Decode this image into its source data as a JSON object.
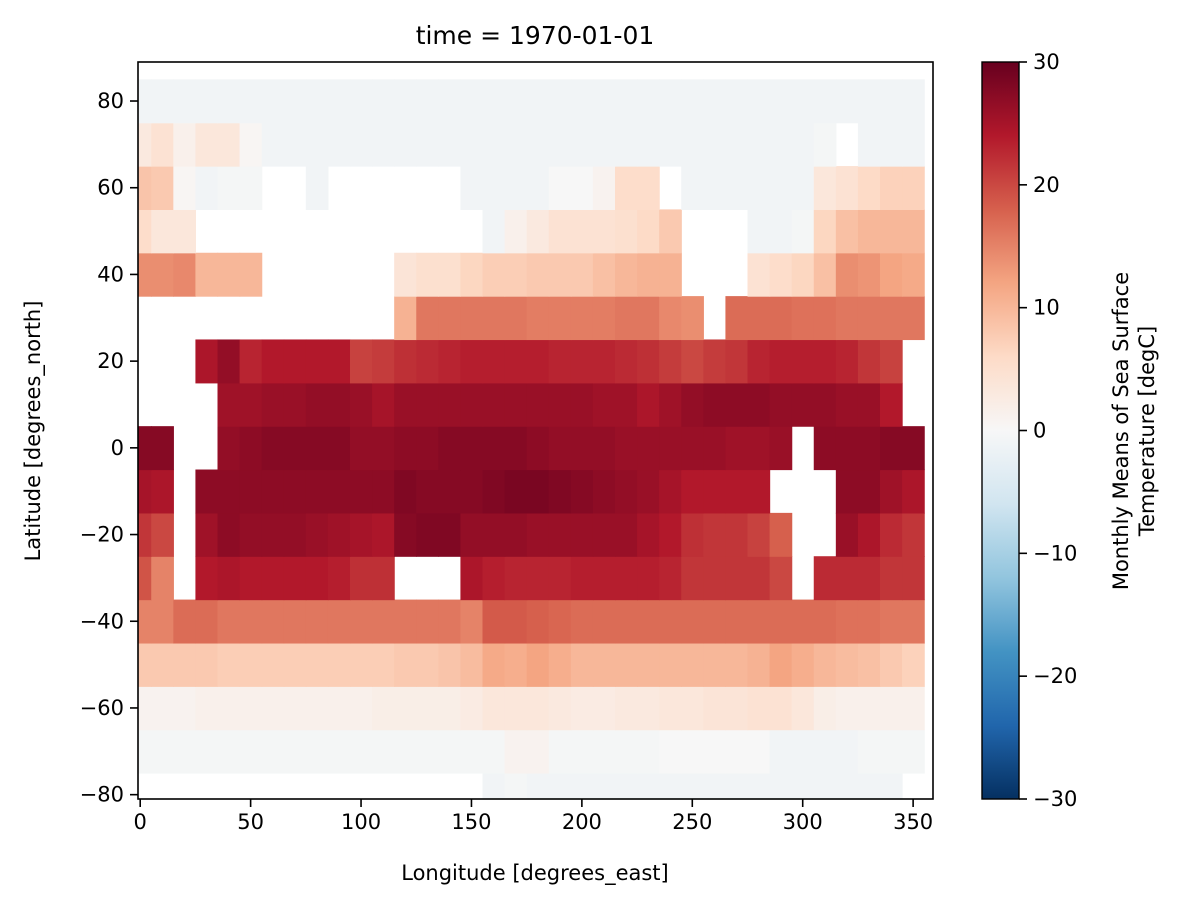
{
  "chart_data": {
    "type": "heatmap",
    "title": "time = 1970-01-01",
    "xlabel": "Longitude [degrees_east]",
    "ylabel": "Latitude [degrees_north]",
    "xlim": [
      -1,
      359
    ],
    "ylim": [
      -81,
      89
    ],
    "x_ticks": [
      0,
      50,
      100,
      150,
      200,
      250,
      300,
      350
    ],
    "x_tick_labels": [
      "0",
      "50",
      "100",
      "150",
      "200",
      "250",
      "300",
      "350"
    ],
    "y_ticks": [
      -80,
      -60,
      -40,
      -20,
      0,
      20,
      40,
      60,
      80
    ],
    "y_tick_labels": [
      "−80",
      "−60",
      "−40",
      "−20",
      "0",
      "20",
      "40",
      "60",
      "80"
    ],
    "grid": false,
    "colormap": "RdBu_r",
    "colorbar": {
      "label_line1": "Monthly Means of Sea Surface",
      "label_line2": "Temperature [degC]",
      "vmin": -30,
      "vmax": 30,
      "ticks": [
        -30,
        -20,
        -10,
        0,
        10,
        20,
        30
      ],
      "tick_labels": [
        "−30",
        "−20",
        "−10",
        "0",
        "10",
        "20",
        "30"
      ],
      "placement": "right"
    },
    "x_centers": [
      0,
      10,
      20,
      30,
      40,
      50,
      60,
      70,
      80,
      90,
      100,
      110,
      120,
      130,
      140,
      150,
      160,
      170,
      180,
      190,
      200,
      210,
      220,
      230,
      240,
      250,
      260,
      270,
      280,
      290,
      300,
      310,
      320,
      330,
      340,
      350
    ],
    "y_centers": [
      -80,
      -70,
      -60,
      -50,
      -40,
      -30,
      -20,
      -10,
      0,
      10,
      20,
      30,
      40,
      50,
      60,
      70,
      80
    ],
    "cell_width": 10,
    "cell_height": 10,
    "rows": [
      [
        null,
        null,
        null,
        null,
        null,
        null,
        null,
        null,
        null,
        null,
        null,
        null,
        null,
        null,
        null,
        null,
        -1,
        -0.5,
        -1,
        -1,
        -1,
        -1,
        -1,
        -1,
        -1,
        -1,
        -1,
        -1,
        -1,
        -1,
        -1,
        -1,
        -1,
        -1,
        -1,
        null
      ],
      [
        -0.5,
        -0.5,
        -0.5,
        -0.5,
        -0.5,
        -0.5,
        -0.5,
        -0.5,
        -0.5,
        -0.5,
        -0.5,
        -0.5,
        -0.5,
        -0.5,
        -0.5,
        -0.5,
        -0.5,
        1,
        1,
        -0.5,
        -0.5,
        -0.5,
        -0.5,
        -0.5,
        0,
        0,
        0,
        0,
        0,
        -1,
        -1,
        -1,
        -1,
        -0.5,
        -0.5,
        -0.5
      ],
      [
        1,
        1,
        1,
        1.5,
        1.5,
        1.5,
        1.5,
        1.5,
        1.5,
        1.5,
        1.5,
        2,
        2,
        2,
        2,
        2.5,
        3.5,
        3.5,
        3.5,
        3,
        2.5,
        2.5,
        3,
        3,
        3.5,
        3.5,
        4,
        4,
        4.5,
        4.5,
        3.5,
        2,
        1.5,
        1.5,
        1.5,
        1.5
      ],
      [
        8,
        8,
        8,
        8,
        7.5,
        7.5,
        7.5,
        7.5,
        7.5,
        7.5,
        7.5,
        7.5,
        8,
        8,
        8.5,
        9.5,
        11.5,
        11,
        12,
        11,
        10,
        10,
        10,
        10,
        10,
        10,
        10,
        10,
        10.5,
        12,
        11,
        10,
        9.5,
        9,
        8,
        7
      ],
      [
        15,
        15,
        17,
        17,
        16,
        16,
        16,
        16,
        16,
        16,
        16,
        16,
        16,
        16,
        16,
        15,
        18.5,
        18.5,
        18,
        17.5,
        17,
        17,
        17,
        17,
        17,
        17,
        17,
        17,
        17,
        17,
        17,
        17,
        16.5,
        16.5,
        16,
        16
      ],
      [
        19,
        15,
        null,
        24,
        24.5,
        24,
        24,
        24,
        24,
        23.5,
        22,
        22,
        null,
        null,
        null,
        24.5,
        23.5,
        23,
        23,
        23,
        23.5,
        23.5,
        23.5,
        23.5,
        23,
        21.5,
        21.5,
        21.5,
        21.5,
        20,
        null,
        22.5,
        22.5,
        22.5,
        21.5,
        21.5
      ],
      [
        21.5,
        20,
        null,
        25.5,
        27,
        26.5,
        26.5,
        26.5,
        26,
        25.5,
        25,
        24.5,
        27.5,
        28,
        28,
        26.5,
        26.5,
        26.5,
        26,
        26,
        26,
        26,
        26,
        25,
        24,
        22,
        21.5,
        21.5,
        20.5,
        18,
        null,
        null,
        26,
        24.5,
        22.5,
        21.5
      ],
      [
        25,
        24.5,
        null,
        27,
        27,
        27,
        27,
        27,
        27,
        27,
        27,
        27,
        28,
        27.5,
        27.5,
        27.5,
        28,
        28.5,
        28.5,
        28,
        27.5,
        27,
        26.5,
        26,
        25,
        24,
        24,
        24,
        24,
        null,
        null,
        null,
        27,
        27,
        25.5,
        24.5
      ],
      [
        27.5,
        27.5,
        null,
        null,
        26.5,
        27,
        27.5,
        27.5,
        27.5,
        27.5,
        26.5,
        26.5,
        27,
        27,
        27.5,
        27.5,
        27.5,
        27.5,
        27,
        26.5,
        26.5,
        26.5,
        26,
        26,
        26,
        26,
        26,
        25.5,
        25.5,
        26,
        null,
        27,
        27,
        27,
        27.5,
        27.5
      ],
      [
        null,
        null,
        null,
        null,
        25.5,
        25.5,
        26,
        26,
        26.5,
        26.5,
        26,
        25,
        26,
        26,
        26,
        26,
        26,
        26,
        26,
        26,
        26,
        25.5,
        25.5,
        24.5,
        25.5,
        26.5,
        27,
        27,
        27,
        26.5,
        26.5,
        26.5,
        26,
        26,
        24,
        null
      ],
      [
        null,
        null,
        null,
        24.5,
        26.5,
        23,
        24,
        24,
        24,
        24,
        20.5,
        21,
        22,
        22.5,
        23,
        23.5,
        23.5,
        23.5,
        23.5,
        23,
        23,
        23,
        22.5,
        22,
        21,
        20,
        21,
        21.5,
        23,
        23.5,
        23.5,
        23.5,
        23,
        21.5,
        20.5,
        null
      ],
      [
        null,
        null,
        null,
        null,
        null,
        null,
        null,
        null,
        null,
        null,
        null,
        null,
        10.5,
        16,
        16,
        16,
        16,
        16,
        15.5,
        15.5,
        15.5,
        15.5,
        16,
        16,
        14.5,
        14,
        null,
        17,
        17,
        17,
        16.5,
        16.5,
        16,
        16,
        16,
        16
      ],
      [
        14,
        14,
        14.5,
        10,
        10,
        10,
        null,
        null,
        null,
        null,
        null,
        null,
        4,
        5,
        5,
        6.5,
        7.5,
        7.5,
        8,
        8,
        8,
        9,
        10,
        10.5,
        10.5,
        null,
        null,
        null,
        4.5,
        5.5,
        6.5,
        9,
        14,
        13.5,
        12,
        11.5
      ],
      [
        5.5,
        3.5,
        3.5,
        null,
        null,
        null,
        null,
        null,
        null,
        null,
        null,
        null,
        null,
        null,
        null,
        null,
        -1,
        1.5,
        3,
        4.5,
        4.5,
        4.5,
        5,
        6,
        8,
        null,
        null,
        null,
        -1,
        -1,
        -0.5,
        6.5,
        9,
        10,
        10,
        10
      ],
      [
        8.5,
        8,
        0.5,
        -1,
        -0.5,
        -0.5,
        null,
        null,
        -1,
        null,
        null,
        null,
        null,
        null,
        null,
        -1,
        -1,
        -1,
        -1,
        0,
        0,
        1,
        5.5,
        5.5,
        null,
        -1,
        -1,
        -1,
        -1,
        -1,
        -1,
        3.5,
        4.5,
        6,
        7,
        7
      ],
      [
        3,
        4.5,
        1.5,
        3.5,
        3.5,
        0.5,
        -1,
        -1,
        -1,
        -1,
        -1,
        -1,
        -1,
        -1,
        -1,
        -1,
        -1,
        -1,
        -1,
        -1,
        -1,
        -1,
        -1,
        -1,
        -1,
        -1,
        -1,
        -1,
        -1,
        -1,
        -1,
        -0.5,
        null,
        -1,
        -1,
        -1
      ],
      [
        -1,
        -1,
        -1,
        -1,
        -1,
        -1,
        -1,
        -1,
        -1,
        -1,
        -1,
        -1,
        -1,
        -1,
        -1,
        -1,
        -1,
        -1,
        -1,
        -1,
        -1,
        -1,
        -1,
        -1,
        -1,
        -1,
        -1,
        -1,
        -1,
        -1,
        -1,
        -1,
        -1,
        -1,
        -1,
        -1
      ]
    ]
  }
}
